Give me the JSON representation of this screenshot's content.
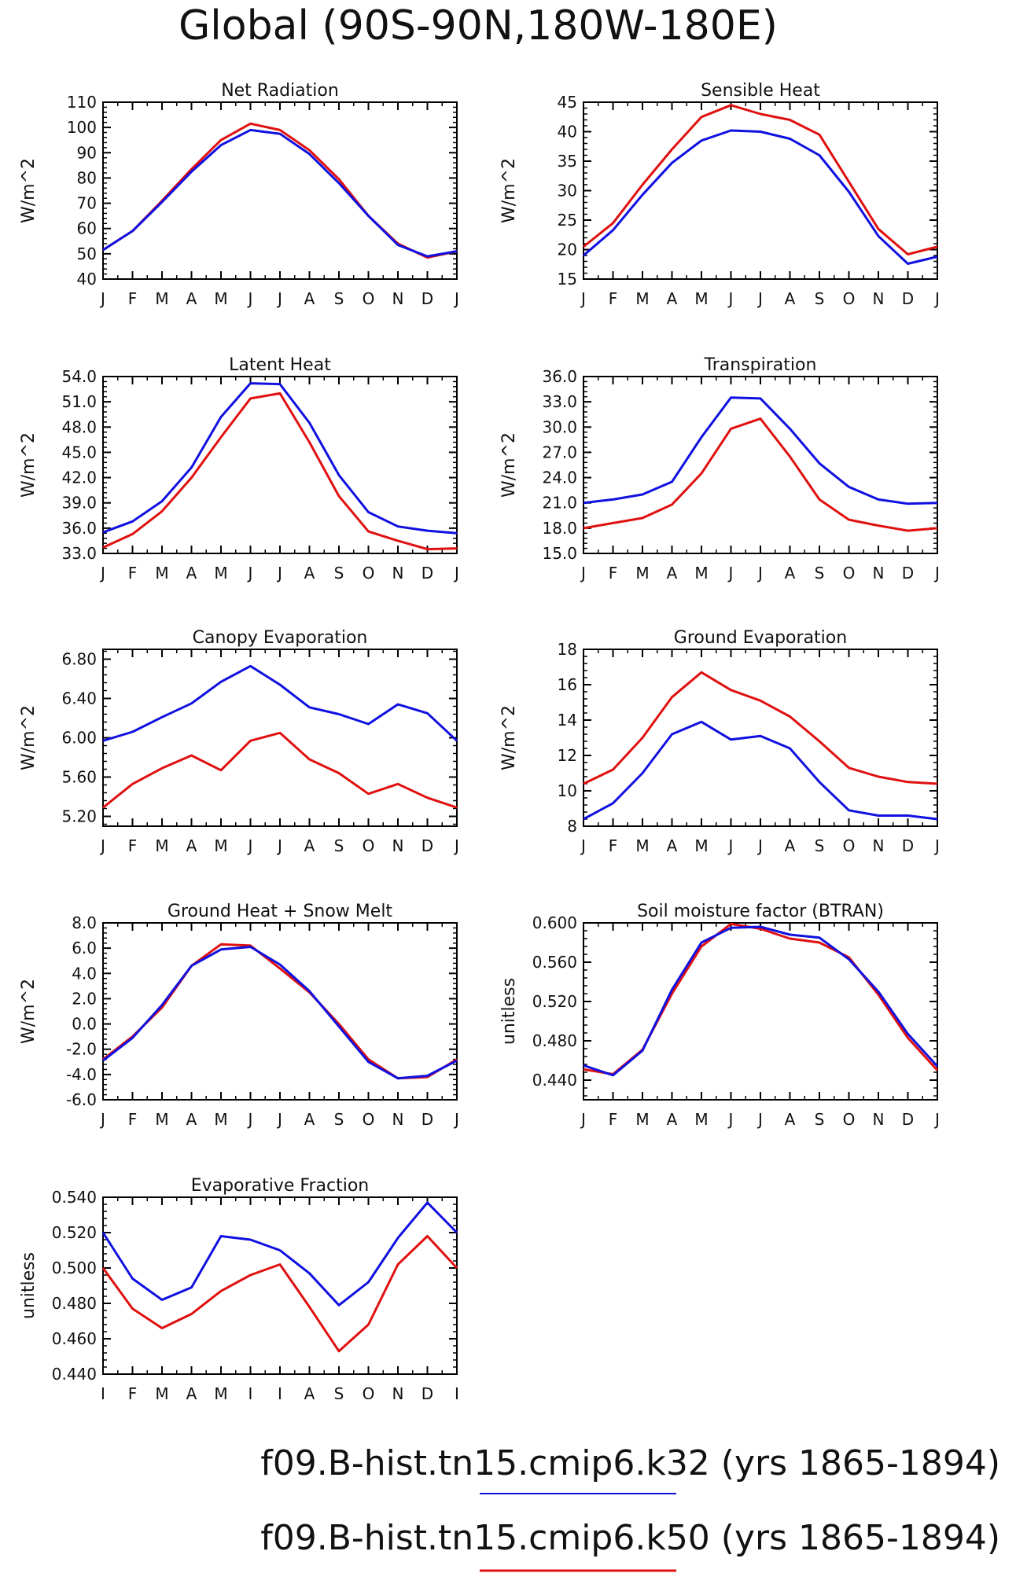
{
  "page": {
    "title": "Global (90S-90N,180W-180E)",
    "legend": [
      {
        "label": "f09.B-hist.tn15.cmip6.k32 (yrs 1865-1894)",
        "color": "#1010e0"
      },
      {
        "label": "f09.B-hist.tn15.cmip6.k50 (yrs 1865-1894)",
        "color": "#e01010"
      }
    ]
  },
  "chart_data": [
    {
      "type": "line",
      "title": "Net Radiation",
      "ylabel": "W/m^2",
      "x": [
        "J",
        "F",
        "M",
        "A",
        "M",
        "J",
        "J",
        "A",
        "S",
        "O",
        "N",
        "D",
        "J"
      ],
      "ylim": [
        40,
        110
      ],
      "yticks": [
        "40",
        "50",
        "60",
        "70",
        "80",
        "90",
        "100",
        "110"
      ],
      "series": [
        {
          "color": "#e01010",
          "values": [
            51.5,
            59,
            71,
            83.5,
            95,
            101.5,
            99,
            91,
            79.5,
            65,
            54,
            48.5,
            51
          ]
        },
        {
          "color": "#1010e0",
          "values": [
            51.5,
            59,
            70.5,
            82.5,
            93,
            99,
            97.5,
            89.5,
            78,
            65,
            53.5,
            49,
            51
          ]
        }
      ]
    },
    {
      "type": "line",
      "title": "Sensible Heat",
      "ylabel": "W/m^2",
      "x": [
        "J",
        "F",
        "M",
        "A",
        "M",
        "J",
        "J",
        "A",
        "S",
        "O",
        "N",
        "D",
        "J"
      ],
      "ylim": [
        15,
        45
      ],
      "yticks": [
        "15",
        "20",
        "25",
        "30",
        "35",
        "40",
        "45"
      ],
      "series": [
        {
          "color": "#e01010",
          "values": [
            20.5,
            24.5,
            31,
            37,
            42.5,
            44.5,
            43,
            42,
            39.5,
            31.5,
            23.5,
            19.2,
            20.5
          ]
        },
        {
          "color": "#1010e0",
          "values": [
            19,
            23.3,
            29.3,
            34.7,
            38.5,
            40.2,
            40,
            38.8,
            36,
            29.8,
            22.3,
            17.6,
            18.8
          ]
        }
      ]
    },
    {
      "type": "line",
      "title": "Latent Heat",
      "ylabel": "W/m^2",
      "x": [
        "J",
        "F",
        "M",
        "A",
        "M",
        "J",
        "J",
        "A",
        "S",
        "O",
        "N",
        "D",
        "J"
      ],
      "ylim": [
        33,
        54
      ],
      "yticks": [
        "33.0",
        "36.0",
        "39.0",
        "42.0",
        "45.0",
        "48.0",
        "51.0",
        "54.0"
      ],
      "series": [
        {
          "color": "#e01010",
          "values": [
            33.7,
            35.3,
            38,
            42,
            46.8,
            51.4,
            52.0,
            46.2,
            39.8,
            35.6,
            34.5,
            33.5,
            33.6
          ]
        },
        {
          "color": "#1010e0",
          "values": [
            35.5,
            36.8,
            39.2,
            43.2,
            49.2,
            53.2,
            53.1,
            48.5,
            42.3,
            37.9,
            36.2,
            35.7,
            35.4
          ]
        }
      ]
    },
    {
      "type": "line",
      "title": "Transpiration",
      "ylabel": "W/m^2",
      "x": [
        "J",
        "F",
        "M",
        "A",
        "M",
        "J",
        "J",
        "A",
        "S",
        "O",
        "N",
        "D",
        "J"
      ],
      "ylim": [
        15,
        36
      ],
      "yticks": [
        "15.0",
        "18.0",
        "21.0",
        "24.0",
        "27.0",
        "30.0",
        "33.0",
        "36.0"
      ],
      "series": [
        {
          "color": "#e01010",
          "values": [
            18.0,
            18.6,
            19.2,
            20.8,
            24.5,
            29.8,
            31.0,
            26.5,
            21.4,
            19.0,
            18.3,
            17.7,
            18.0
          ]
        },
        {
          "color": "#1010e0",
          "values": [
            21.0,
            21.4,
            22.0,
            23.5,
            28.8,
            33.5,
            33.4,
            29.8,
            25.7,
            22.9,
            21.4,
            20.9,
            21.0
          ]
        }
      ]
    },
    {
      "type": "line",
      "title": "Canopy Evaporation",
      "ylabel": "W/m^2",
      "x": [
        "J",
        "F",
        "M",
        "A",
        "M",
        "J",
        "J",
        "A",
        "S",
        "O",
        "N",
        "D",
        "J"
      ],
      "ylim": [
        5.1,
        6.9
      ],
      "yticks": [
        "5.20",
        "5.60",
        "6.00",
        "6.40",
        "6.80"
      ],
      "series": [
        {
          "color": "#e01010",
          "values": [
            5.29,
            5.53,
            5.69,
            5.82,
            5.67,
            5.97,
            6.05,
            5.78,
            5.64,
            5.43,
            5.53,
            5.39,
            5.29
          ]
        },
        {
          "color": "#1010e0",
          "values": [
            5.97,
            6.06,
            6.21,
            6.35,
            6.57,
            6.73,
            6.54,
            6.31,
            6.24,
            6.14,
            6.34,
            6.25,
            5.97
          ]
        }
      ]
    },
    {
      "type": "line",
      "title": "Ground Evaporation",
      "ylabel": "W/m^2",
      "x": [
        "J",
        "F",
        "M",
        "A",
        "M",
        "J",
        "J",
        "A",
        "S",
        "O",
        "N",
        "D",
        "J"
      ],
      "ylim": [
        8,
        18
      ],
      "yticks": [
        "8",
        "10",
        "12",
        "14",
        "16",
        "18"
      ],
      "series": [
        {
          "color": "#e01010",
          "values": [
            10.4,
            11.2,
            13.0,
            15.3,
            16.7,
            15.7,
            15.1,
            14.2,
            12.8,
            11.3,
            10.8,
            10.5,
            10.4
          ]
        },
        {
          "color": "#1010e0",
          "values": [
            8.4,
            9.3,
            11.0,
            13.2,
            13.9,
            12.9,
            13.1,
            12.4,
            10.5,
            8.9,
            8.6,
            8.6,
            8.4
          ]
        }
      ]
    },
    {
      "type": "line",
      "title": "Ground Heat + Snow Melt",
      "ylabel": "W/m^2",
      "x": [
        "J",
        "F",
        "M",
        "A",
        "M",
        "J",
        "J",
        "A",
        "S",
        "O",
        "N",
        "D",
        "J"
      ],
      "ylim": [
        -6,
        8
      ],
      "yticks": [
        "-6.0",
        "-4.0",
        "-2.0",
        "0.0",
        "2.0",
        "4.0",
        "6.0",
        "8.0"
      ],
      "series": [
        {
          "color": "#e01010",
          "values": [
            -2.8,
            -1.0,
            1.3,
            4.6,
            6.3,
            6.2,
            4.4,
            2.5,
            0.0,
            -2.8,
            -4.3,
            -4.2,
            -2.8
          ]
        },
        {
          "color": "#1010e0",
          "values": [
            -2.9,
            -1.1,
            1.5,
            4.6,
            5.9,
            6.1,
            4.7,
            2.6,
            -0.2,
            -3.0,
            -4.3,
            -4.1,
            -2.9
          ]
        }
      ]
    },
    {
      "type": "line",
      "title": "Soil moisture factor (BTRAN)",
      "ylabel": "unitless",
      "x": [
        "J",
        "F",
        "M",
        "A",
        "M",
        "J",
        "J",
        "A",
        "S",
        "O",
        "N",
        "D",
        "J"
      ],
      "ylim": [
        0.42,
        0.6
      ],
      "yticks": [
        "0.440",
        "0.480",
        "0.520",
        "0.560",
        "0.600"
      ],
      "series": [
        {
          "color": "#e01010",
          "values": [
            0.451,
            0.446,
            0.471,
            0.528,
            0.576,
            0.599,
            0.594,
            0.584,
            0.58,
            0.565,
            0.527,
            0.483,
            0.45
          ]
        },
        {
          "color": "#1010e0",
          "values": [
            0.455,
            0.445,
            0.47,
            0.532,
            0.58,
            0.595,
            0.596,
            0.588,
            0.585,
            0.563,
            0.53,
            0.487,
            0.454
          ]
        }
      ]
    },
    {
      "type": "line",
      "title": "Evaporative Fraction",
      "ylabel": "unitless",
      "x": [
        "J",
        "F",
        "M",
        "A",
        "M",
        "J",
        "J",
        "A",
        "S",
        "O",
        "N",
        "D",
        "J"
      ],
      "ylim": [
        0.44,
        0.54
      ],
      "yticks": [
        "0.440",
        "0.460",
        "0.480",
        "0.500",
        "0.520",
        "0.540"
      ],
      "series": [
        {
          "color": "#e01010",
          "values": [
            0.5,
            0.477,
            0.466,
            0.474,
            0.487,
            0.496,
            0.502,
            0.478,
            0.453,
            0.468,
            0.502,
            0.518,
            0.5
          ]
        },
        {
          "color": "#1010e0",
          "values": [
            0.52,
            0.494,
            0.482,
            0.489,
            0.518,
            0.516,
            0.51,
            0.497,
            0.479,
            0.492,
            0.517,
            0.537,
            0.52
          ]
        }
      ]
    }
  ]
}
